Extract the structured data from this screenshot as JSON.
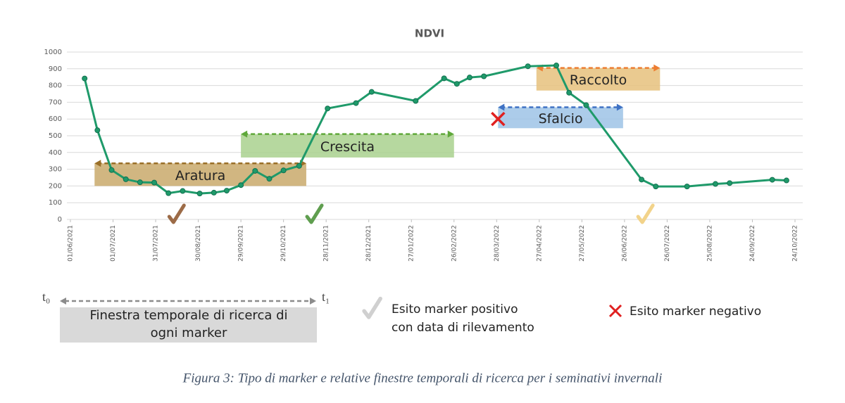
{
  "chart_data": {
    "type": "line",
    "title": "NDVI",
    "xlim": [
      "2021-06-01",
      "2022-10-24"
    ],
    "ylim": [
      0,
      1000
    ],
    "yticks": [
      0,
      100,
      200,
      300,
      400,
      500,
      600,
      700,
      800,
      900,
      1000
    ],
    "xticks": [
      {
        "value": "2021-06-01",
        "label": "01/06/2021"
      },
      {
        "value": "2021-07-01",
        "label": "01/07/2021"
      },
      {
        "value": "2021-07-31",
        "label": "31/07/2021"
      },
      {
        "value": "2021-08-30",
        "label": "30/08/2021"
      },
      {
        "value": "2021-09-29",
        "label": "29/09/2021"
      },
      {
        "value": "2021-10-29",
        "label": "29/10/2021"
      },
      {
        "value": "2021-11-28",
        "label": "28/11/2021"
      },
      {
        "value": "2021-12-28",
        "label": "28/12/2021"
      },
      {
        "value": "2022-01-27",
        "label": "27/01/2022"
      },
      {
        "value": "2022-02-26",
        "label": "26/02/2022"
      },
      {
        "value": "2022-03-28",
        "label": "28/03/2022"
      },
      {
        "value": "2022-04-27",
        "label": "27/04/2022"
      },
      {
        "value": "2022-05-27",
        "label": "27/05/2022"
      },
      {
        "value": "2022-06-26",
        "label": "26/06/2022"
      },
      {
        "value": "2022-07-26",
        "label": "26/07/2022"
      },
      {
        "value": "2022-08-25",
        "label": "25/08/2022"
      },
      {
        "value": "2022-09-24",
        "label": "24/09/2022"
      },
      {
        "value": "2022-10-24",
        "label": "24/10/2022"
      }
    ],
    "grid": true,
    "x": [
      "2021-06-11",
      "2021-06-20",
      "2021-06-30",
      "2021-07-10",
      "2021-07-20",
      "2021-07-30",
      "2021-08-09",
      "2021-08-19",
      "2021-08-31",
      "2021-09-10",
      "2021-09-19",
      "2021-09-29",
      "2021-10-09",
      "2021-10-19",
      "2021-10-29",
      "2021-11-09",
      "2021-11-29",
      "2021-12-19",
      "2021-12-30",
      "2022-01-30",
      "2022-02-19",
      "2022-02-28",
      "2022-03-09",
      "2022-03-19",
      "2022-04-19",
      "2022-05-09",
      "2022-05-18",
      "2022-05-30",
      "2022-07-08",
      "2022-07-18",
      "2022-08-09",
      "2022-08-29",
      "2022-09-08",
      "2022-10-08",
      "2022-10-18"
    ],
    "series": [
      {
        "color": "#1f9a6a",
        "values": [
          842,
          533,
          295,
          240,
          222,
          220,
          157,
          170,
          155,
          160,
          172,
          205,
          290,
          243,
          293,
          320,
          663,
          695,
          762,
          708,
          843,
          810,
          848,
          855,
          915,
          920,
          757,
          683,
          238,
          197,
          197,
          212,
          217,
          237,
          233
        ]
      }
    ],
    "annotations": [
      {
        "text": "Aratura",
        "start": "2021-06-18",
        "end": "2021-11-14",
        "top": 335,
        "bottom": 200,
        "color": "#c9a96b",
        "arrow_color": "#9a6f28"
      },
      {
        "text": "Crescita",
        "start": "2021-09-29",
        "end": "2022-02-26",
        "top": 510,
        "bottom": 370,
        "color": "#a9d18e",
        "arrow_color": "#5fa83a"
      },
      {
        "text": "Sfalcio",
        "start": "2022-03-29",
        "end": "2022-06-25",
        "top": 670,
        "bottom": 545,
        "color": "#9dc3e6",
        "arrow_color": "#3f72c4"
      },
      {
        "text": "Raccolto",
        "start": "2022-04-25",
        "end": "2022-07-21",
        "top": 905,
        "bottom": 770,
        "color": "#e6c17c",
        "arrow_color": "#ed7d31"
      }
    ],
    "checks": [
      {
        "date": "2021-08-14",
        "color": "#9c6b47"
      },
      {
        "date": "2021-11-19",
        "color": "#5f9e4f"
      },
      {
        "date": "2022-07-10",
        "color": "#f2d38a"
      }
    ],
    "cross": {
      "date": "2022-03-29",
      "value": 600,
      "color": "#e02020"
    }
  },
  "legend": {
    "t0": "t₀",
    "t1": "t₁",
    "window": [
      "Finestra temporale di ricerca di",
      "ogni marker"
    ],
    "positive": [
      "Esito marker positivo",
      "con data di rilevamento"
    ],
    "negative": "Esito marker negativo"
  },
  "caption": "Figura 3: Tipo di marker e relative finestre temporali di ricerca per i seminativi invernali"
}
